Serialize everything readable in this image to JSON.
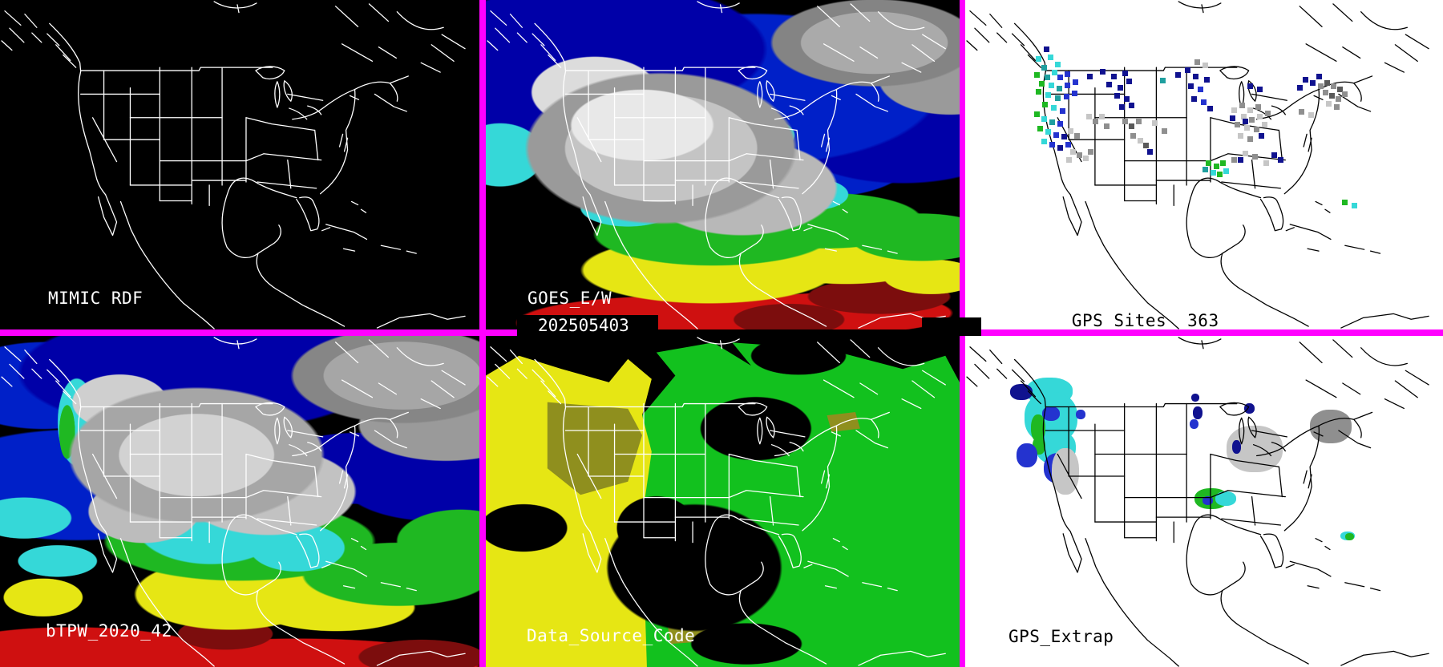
{
  "panels": {
    "mimic_rdf": {
      "label": "MIMIC RDF"
    },
    "goes_ew": {
      "label": "GOES_E/W",
      "timestamp": "202505403"
    },
    "gps_sites": {
      "label": "GPS Sites",
      "count": "363",
      "dots": [
        [
          98,
          58,
          "navy"
        ],
        [
          88,
          70,
          "cyan"
        ],
        [
          103,
          68,
          "cyan"
        ],
        [
          112,
          77,
          "cyan"
        ],
        [
          95,
          81,
          "teal"
        ],
        [
          108,
          87,
          "cyan"
        ],
        [
          86,
          90,
          "green"
        ],
        [
          99,
          93,
          "teal"
        ],
        [
          115,
          93,
          "blue"
        ],
        [
          124,
          89,
          "blue"
        ],
        [
          92,
          101,
          "green"
        ],
        [
          104,
          103,
          "cyan"
        ],
        [
          114,
          107,
          "teal"
        ],
        [
          124,
          103,
          "blue"
        ],
        [
          134,
          99,
          "blue"
        ],
        [
          88,
          111,
          "green"
        ],
        [
          100,
          115,
          "cyan"
        ],
        [
          112,
          119,
          "teal"
        ],
        [
          123,
          117,
          "blue"
        ],
        [
          133,
          113,
          "blue"
        ],
        [
          96,
          127,
          "green"
        ],
        [
          107,
          131,
          "cyan"
        ],
        [
          118,
          135,
          "blue"
        ],
        [
          86,
          139,
          "green"
        ],
        [
          95,
          145,
          "cyan"
        ],
        [
          105,
          149,
          "teal"
        ],
        [
          115,
          151,
          "blue"
        ],
        [
          90,
          157,
          "green"
        ],
        [
          100,
          161,
          "cyan"
        ],
        [
          110,
          165,
          "blue"
        ],
        [
          120,
          167,
          "navy"
        ],
        [
          95,
          173,
          "cyan"
        ],
        [
          105,
          177,
          "blue"
        ],
        [
          115,
          181,
          "navy"
        ],
        [
          125,
          177,
          "blue"
        ],
        [
          128,
          160,
          "lightgray"
        ],
        [
          136,
          166,
          "gray"
        ],
        [
          131,
          186,
          "lightgray"
        ],
        [
          139,
          190,
          "gray"
        ],
        [
          147,
          194,
          "lightgray"
        ],
        [
          153,
          186,
          "gray"
        ],
        [
          126,
          196,
          "lightgray"
        ],
        [
          151,
          142,
          "lightgray"
        ],
        [
          159,
          148,
          "gray"
        ],
        [
          167,
          142,
          "lightgray"
        ],
        [
          173,
          154,
          "gray"
        ],
        [
          152,
          92,
          "navy"
        ],
        [
          168,
          86,
          "navy"
        ],
        [
          182,
          92,
          "navy"
        ],
        [
          196,
          88,
          "navy"
        ],
        [
          176,
          102,
          "navy"
        ],
        [
          190,
          106,
          "navy"
        ],
        [
          201,
          98,
          "navy"
        ],
        [
          186,
          116,
          "navy"
        ],
        [
          198,
          120,
          "navy"
        ],
        [
          204,
          128,
          "navy"
        ],
        [
          192,
          130,
          "navy"
        ],
        [
          196,
          148,
          "gray"
        ],
        [
          204,
          154,
          "darkgray"
        ],
        [
          213,
          148,
          "gray"
        ],
        [
          206,
          166,
          "gray"
        ],
        [
          215,
          172,
          "lightgray"
        ],
        [
          222,
          178,
          "darkgray"
        ],
        [
          227,
          186,
          "navy"
        ],
        [
          233,
          150,
          "lightgray"
        ],
        [
          245,
          160,
          "gray"
        ],
        [
          243,
          97,
          "teal"
        ],
        [
          262,
          90,
          "navy"
        ],
        [
          274,
          84,
          "navy"
        ],
        [
          284,
          92,
          "navy"
        ],
        [
          278,
          104,
          "navy"
        ],
        [
          290,
          108,
          "blue"
        ],
        [
          298,
          96,
          "navy"
        ],
        [
          282,
          120,
          "navy"
        ],
        [
          294,
          124,
          "blue"
        ],
        [
          302,
          132,
          "navy"
        ],
        [
          286,
          74,
          "gray"
        ],
        [
          296,
          78,
          "lightgray"
        ],
        [
          332,
          134,
          "lightgray"
        ],
        [
          342,
          128,
          "gray"
        ],
        [
          352,
          134,
          "lightgray"
        ],
        [
          362,
          130,
          "gray"
        ],
        [
          344,
          142,
          "lightgray"
        ],
        [
          354,
          146,
          "gray"
        ],
        [
          364,
          142,
          "lightgray"
        ],
        [
          374,
          138,
          "gray"
        ],
        [
          336,
          152,
          "gray"
        ],
        [
          348,
          156,
          "lightgray"
        ],
        [
          360,
          158,
          "gray"
        ],
        [
          370,
          152,
          "lightgray"
        ],
        [
          340,
          166,
          "lightgray"
        ],
        [
          352,
          170,
          "gray"
        ],
        [
          330,
          144,
          "navy"
        ],
        [
          346,
          148,
          "navy"
        ],
        [
          366,
          166,
          "navy"
        ],
        [
          352,
          104,
          "navy"
        ],
        [
          364,
          108,
          "navy"
        ],
        [
          414,
          106,
          "navy"
        ],
        [
          421,
          96,
          "navy"
        ],
        [
          430,
          100,
          "navy"
        ],
        [
          438,
          92,
          "navy"
        ],
        [
          440,
          104,
          "gray"
        ],
        [
          448,
          100,
          "darkgray"
        ],
        [
          456,
          104,
          "gray"
        ],
        [
          464,
          108,
          "darkgray"
        ],
        [
          446,
          112,
          "gray"
        ],
        [
          454,
          116,
          "darkgray"
        ],
        [
          462,
          120,
          "gray"
        ],
        [
          470,
          114,
          "gray"
        ],
        [
          450,
          126,
          "lightgray"
        ],
        [
          460,
          130,
          "gray"
        ],
        [
          416,
          136,
          "gray"
        ],
        [
          428,
          140,
          "lightgray"
        ],
        [
          332,
          196,
          "gray"
        ],
        [
          346,
          188,
          "lightgray"
        ],
        [
          358,
          192,
          "gray"
        ],
        [
          382,
          190,
          "navy"
        ],
        [
          390,
          196,
          "navy"
        ],
        [
          372,
          200,
          "lightgray"
        ],
        [
          300,
          200,
          "green"
        ],
        [
          310,
          204,
          "green"
        ],
        [
          318,
          200,
          "green"
        ],
        [
          306,
          212,
          "cyan"
        ],
        [
          314,
          214,
          "green"
        ],
        [
          322,
          210,
          "cyan"
        ],
        [
          296,
          208,
          "teal"
        ],
        [
          340,
          196,
          "navy"
        ],
        [
          470,
          249,
          "green"
        ],
        [
          482,
          253,
          "cyan"
        ]
      ]
    },
    "btpw": {
      "label": "bTPW_2020_42"
    },
    "data_source_code": {
      "label": "Data_Source_Code"
    },
    "gps_extrap": {
      "label": "GPS_Extrap",
      "regions": [
        [
          76,
          52,
          58,
          34,
          "cyan"
        ],
        [
          74,
          70,
          66,
          64,
          "cyan"
        ],
        [
          88,
          118,
          50,
          42,
          "cyan"
        ],
        [
          56,
          60,
          28,
          20,
          "navy"
        ],
        [
          96,
          88,
          22,
          18,
          "blue"
        ],
        [
          82,
          98,
          18,
          34,
          "green"
        ],
        [
          84,
          126,
          16,
          22,
          "green"
        ],
        [
          98,
          146,
          38,
          38,
          "blue"
        ],
        [
          64,
          134,
          26,
          30,
          "blue"
        ],
        [
          108,
          140,
          34,
          58,
          "lightgray"
        ],
        [
          138,
          92,
          12,
          12,
          "blue"
        ],
        [
          282,
          72,
          10,
          10,
          "navy"
        ],
        [
          284,
          88,
          12,
          16,
          "navy"
        ],
        [
          280,
          104,
          11,
          12,
          "blue"
        ],
        [
          326,
          112,
          70,
          58,
          "lightgray"
        ],
        [
          348,
          84,
          13,
          13,
          "navy"
        ],
        [
          333,
          130,
          11,
          17,
          "navy"
        ],
        [
          430,
          92,
          52,
          42,
          "gray"
        ],
        [
          286,
          190,
          42,
          26,
          "green"
        ],
        [
          312,
          194,
          26,
          18,
          "cyan"
        ],
        [
          296,
          200,
          13,
          11,
          "blue"
        ],
        [
          468,
          244,
          18,
          11,
          "cyan"
        ],
        [
          474,
          246,
          11,
          9,
          "green"
        ]
      ]
    }
  },
  "palette": {
    "magenta": "#ff00ff",
    "navy": "#10128f",
    "blue": "#2433cf",
    "deepblue": "#0000a8",
    "midblue": "#0020c8",
    "cyan": "#35d8d8",
    "teal": "#1f9f9f",
    "green": "#1fb822",
    "brightgreen": "#12c11e",
    "yellow": "#e6e614",
    "olive": "#8f8f1e",
    "red": "#cf1010",
    "darkred": "#7c0d0d",
    "gray": "#8f8f8f",
    "lightgray": "#c6c6c6",
    "darkgray": "#5a5a5a"
  }
}
